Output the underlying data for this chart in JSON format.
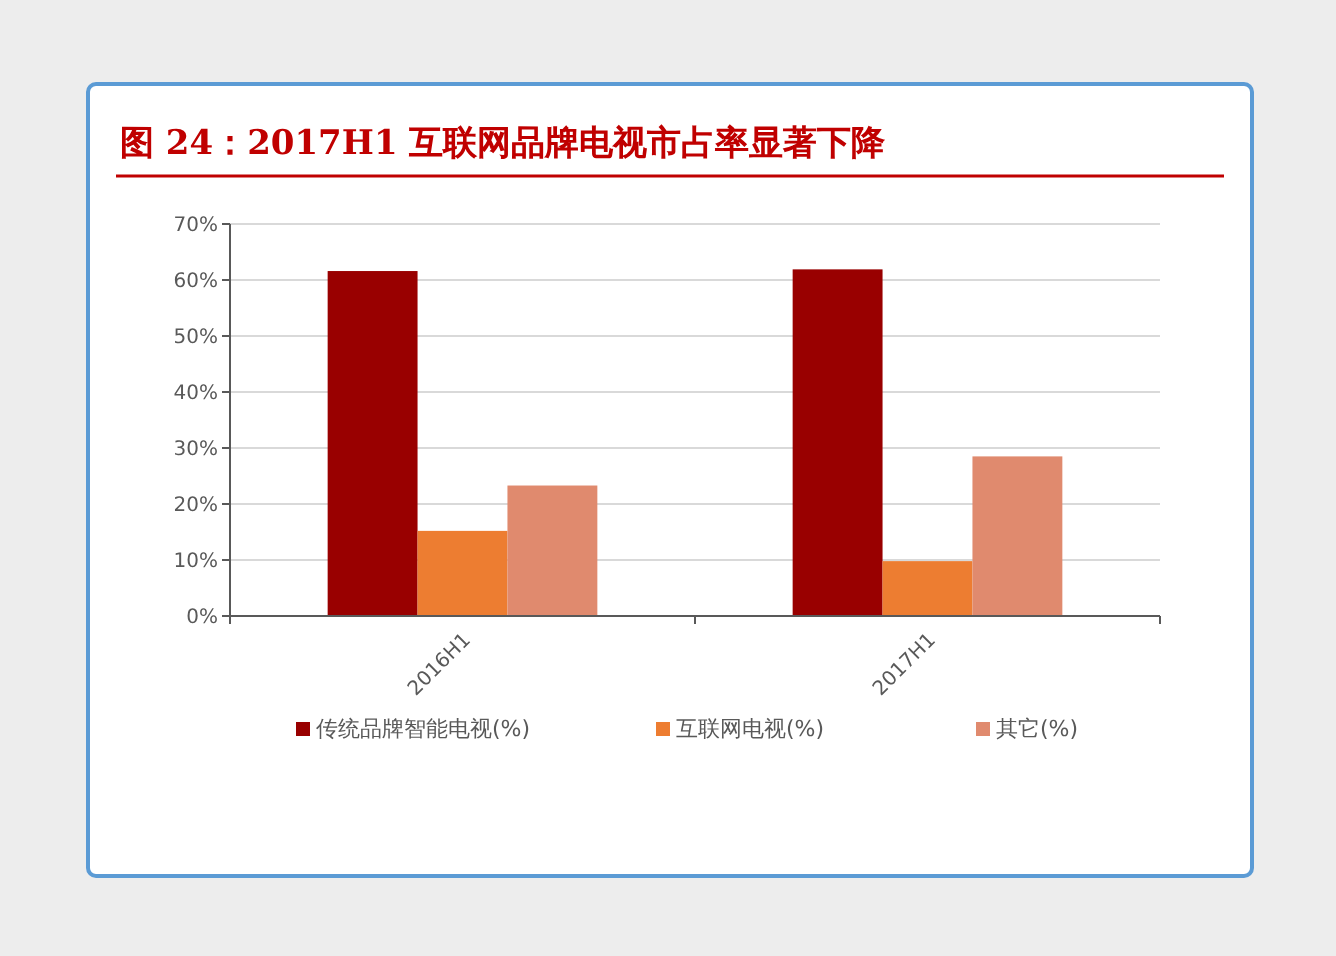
{
  "chart_data": {
    "type": "bar",
    "title": "图 24：2017H1 互联网品牌电视市占率显著下降",
    "categories": [
      "2016H1",
      "2017H1"
    ],
    "series": [
      {
        "name": "传统品牌智能电视(%)",
        "color": "#990000",
        "values": [
          61.6,
          61.9
        ]
      },
      {
        "name": "互联网电视(%)",
        "color": "#ed7d31",
        "values": [
          15.2,
          9.8
        ]
      },
      {
        "name": "其它(%)",
        "color": "#e08a6e",
        "values": [
          23.3,
          28.5
        ]
      }
    ],
    "ylim": [
      0,
      70
    ],
    "yticks": [
      {
        "value": 0,
        "label": "0%"
      },
      {
        "value": 10,
        "label": "10%"
      },
      {
        "value": 20,
        "label": "20%"
      },
      {
        "value": 30,
        "label": "30%"
      },
      {
        "value": 40,
        "label": "40%"
      },
      {
        "value": 50,
        "label": "50%"
      },
      {
        "value": 60,
        "label": "60%"
      },
      {
        "value": 70,
        "label": "70%"
      }
    ],
    "grid": "y",
    "legend": "bottom"
  }
}
